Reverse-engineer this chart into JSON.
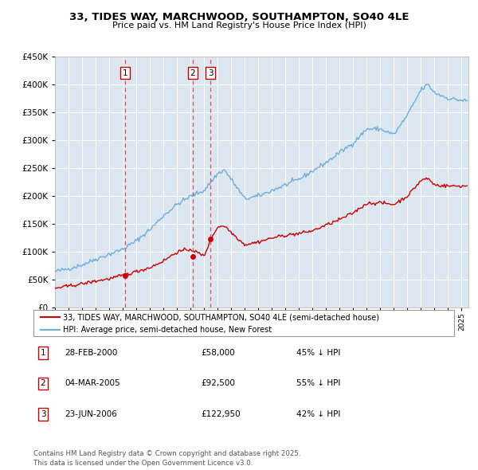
{
  "title": "33, TIDES WAY, MARCHWOOD, SOUTHAMPTON, SO40 4LE",
  "subtitle": "Price paid vs. HM Land Registry's House Price Index (HPI)",
  "legend_red": "33, TIDES WAY, MARCHWOOD, SOUTHAMPTON, SO40 4LE (semi-detached house)",
  "legend_blue": "HPI: Average price, semi-detached house, New Forest",
  "footer": "Contains HM Land Registry data © Crown copyright and database right 2025.\nThis data is licensed under the Open Government Licence v3.0.",
  "transactions": [
    {
      "label": "1",
      "date_str": "28-FEB-2000",
      "price": 58000,
      "pct": "45%",
      "year": 2000.15
    },
    {
      "label": "2",
      "date_str": "04-MAR-2005",
      "price": 92500,
      "pct": "55%",
      "year": 2005.17
    },
    {
      "label": "3",
      "date_str": "23-JUN-2006",
      "price": 122950,
      "pct": "42%",
      "year": 2006.48
    }
  ],
  "ylim": [
    0,
    450000
  ],
  "yticks": [
    0,
    50000,
    100000,
    150000,
    200000,
    250000,
    300000,
    350000,
    400000,
    450000
  ],
  "xlim_start": 1995.0,
  "xlim_end": 2025.5,
  "bg_color": "#dce6f1",
  "red_color": "#cc0000",
  "blue_color": "#6baed6",
  "vline_color": "#e05050",
  "grid_color": "#ffffff"
}
